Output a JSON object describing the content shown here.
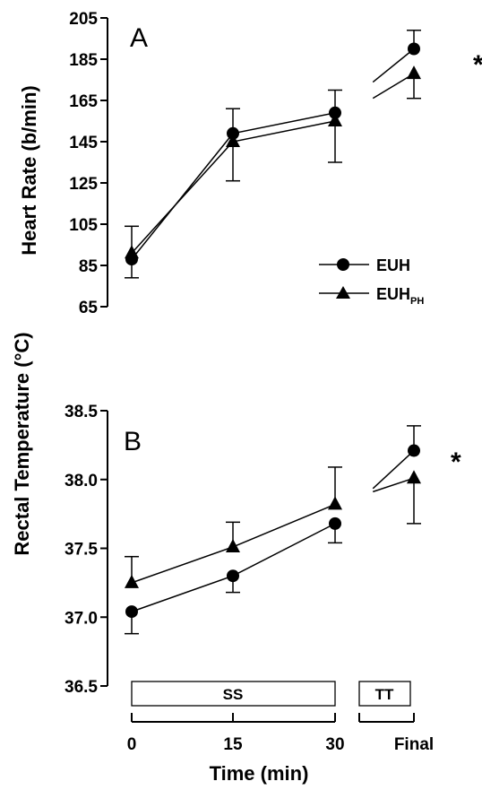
{
  "chart_data": [
    {
      "type": "line",
      "panel_label": "A",
      "ylabel": "Heart Rate (b/min)",
      "ylim": [
        65,
        205
      ],
      "yticks": [
        "205",
        "185",
        "165",
        "145",
        "125",
        "105",
        "85",
        "65"
      ],
      "ytick_values": [
        205,
        185,
        165,
        145,
        125,
        105,
        85,
        65
      ],
      "x_positions": [
        "0",
        "15",
        "30",
        "Final"
      ],
      "significance": "*",
      "legend": {
        "placement": "lower-right",
        "entries": [
          "EUH",
          "EUH"
        ],
        "subscripts": [
          "",
          "PH"
        ]
      },
      "series": [
        {
          "name": "EUH",
          "marker": "circle",
          "values": [
            88,
            149,
            159,
            190
          ],
          "error_below": [
            9,
            0,
            0,
            0
          ],
          "error_above": [
            0,
            12,
            11,
            9
          ]
        },
        {
          "name": "EUH_PH",
          "marker": "triangle",
          "values": [
            91,
            145,
            155,
            178
          ],
          "error_below": [
            0,
            19,
            20,
            12
          ],
          "error_above": [
            13,
            0,
            0,
            0
          ]
        }
      ]
    },
    {
      "type": "line",
      "panel_label": "B",
      "ylabel": "Rectal Temperature (°C)",
      "xlabel": "Time (min)",
      "ylim": [
        36.5,
        38.5
      ],
      "yticks": [
        "38.5",
        "38.0",
        "37.5",
        "37.0",
        "36.5"
      ],
      "ytick_values": [
        38.5,
        38.0,
        37.5,
        37.0,
        36.5
      ],
      "xticks": [
        "0",
        "15",
        "30",
        "Final"
      ],
      "significance": "*",
      "phase_boxes": [
        "SS",
        "TT"
      ],
      "series": [
        {
          "name": "EUH",
          "marker": "circle",
          "values": [
            37.04,
            37.3,
            37.68,
            38.21
          ],
          "error_below": [
            0.16,
            0.12,
            0.14,
            0
          ],
          "error_above": [
            0,
            0,
            0,
            0.18
          ]
        },
        {
          "name": "EUH_PH",
          "marker": "triangle",
          "values": [
            37.25,
            37.51,
            37.82,
            38.01
          ],
          "error_below": [
            0,
            0,
            0,
            0.33
          ],
          "error_above": [
            0.19,
            0.18,
            0.27,
            0
          ]
        }
      ]
    }
  ]
}
